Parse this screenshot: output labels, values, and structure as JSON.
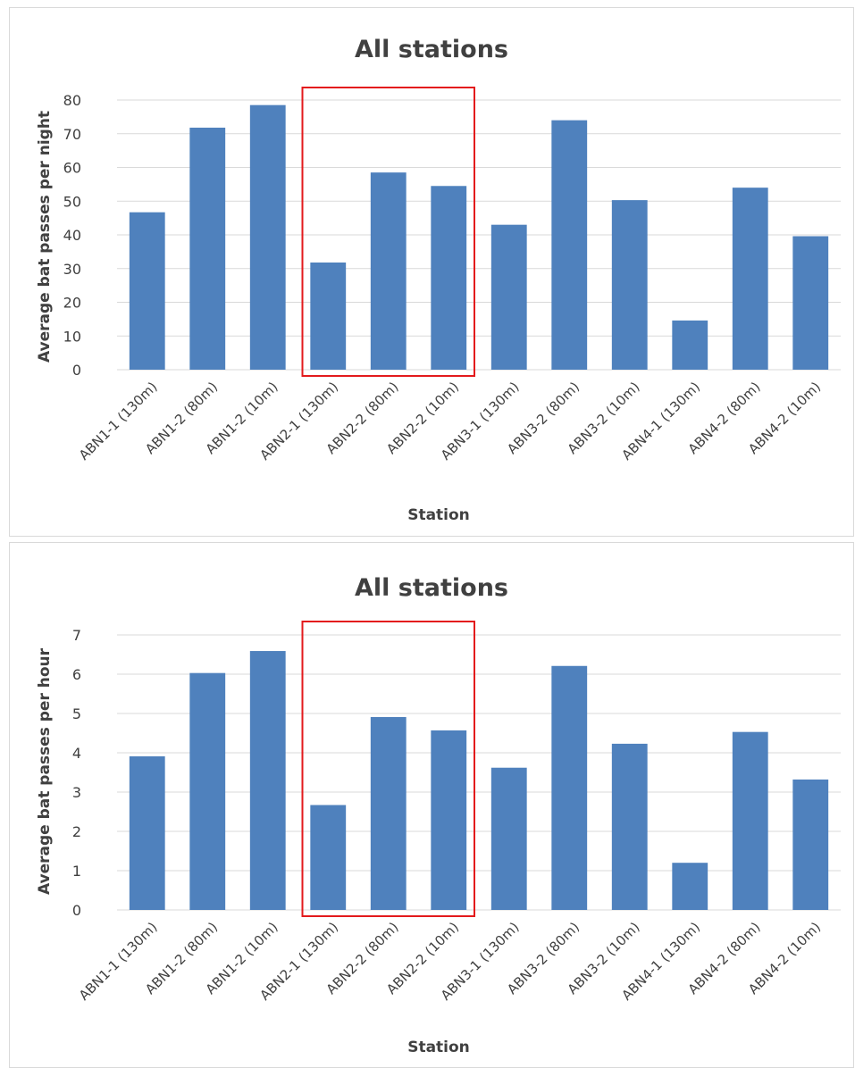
{
  "chart_data": [
    {
      "type": "bar",
      "title": "All stations",
      "xlabel": "Station",
      "ylabel": "Average bat passes per night",
      "ylim": [
        0,
        80
      ],
      "yticks": [
        0,
        10,
        20,
        30,
        40,
        50,
        60,
        70,
        80
      ],
      "grid": true,
      "bar_color": "#4f81bd",
      "highlight": {
        "from_index": 3,
        "to_index": 5,
        "color": "#e31a1c"
      },
      "categories": [
        "ABN1-1 (130m)",
        "ABN1-2 (80m)",
        "ABN1-2 (10m)",
        "ABN2-1 (130m)",
        "ABN2-2 (80m)",
        "ABN2-2 (10m)",
        "ABN3-1 (130m)",
        "ABN3-2 (80m)",
        "ABN3-2 (10m)",
        "ABN4-1 (130m)",
        "ABN4-2 (80m)",
        "ABN4-2 (10m)"
      ],
      "values": [
        46.7,
        71.8,
        78.5,
        31.8,
        58.5,
        54.5,
        43.0,
        74.0,
        50.3,
        14.6,
        54.0,
        39.6
      ]
    },
    {
      "type": "bar",
      "title": "All stations",
      "xlabel": "Station",
      "ylabel": "Average bat passes per hour",
      "ylim": [
        0,
        7
      ],
      "yticks": [
        0,
        1,
        2,
        3,
        4,
        5,
        6,
        7
      ],
      "grid": true,
      "bar_color": "#4f81bd",
      "highlight": {
        "from_index": 3,
        "to_index": 5,
        "color": "#e31a1c"
      },
      "categories": [
        "ABN1-1 (130m)",
        "ABN1-2 (80m)",
        "ABN1-2 (10m)",
        "ABN2-1 (130m)",
        "ABN2-2 (80m)",
        "ABN2-2 (10m)",
        "ABN3-1 (130m)",
        "ABN3-2 (80m)",
        "ABN3-2 (10m)",
        "ABN4-1 (130m)",
        "ABN4-2 (80m)",
        "ABN4-2 (10m)"
      ],
      "values": [
        3.91,
        6.03,
        6.59,
        2.67,
        4.91,
        4.57,
        3.62,
        6.21,
        4.23,
        1.2,
        4.53,
        3.32
      ]
    }
  ]
}
